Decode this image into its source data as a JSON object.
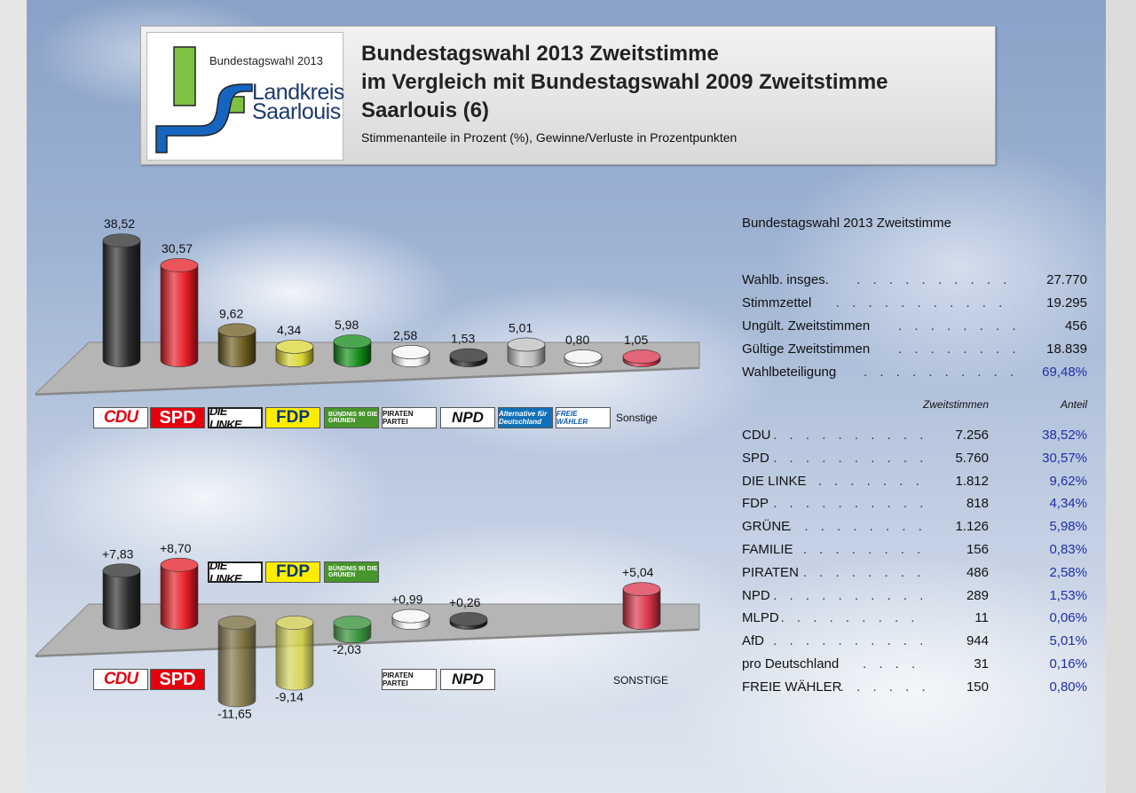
{
  "header": {
    "logo_text": "Bundestagswahl 2013",
    "logo_name_1": "Landkreis",
    "logo_name_2": "Saarlouis",
    "title_1": "Bundestagswahl 2013 Zweitstimme",
    "title_2": "im Vergleich mit Bundestagswahl 2009 Zweitstimme",
    "title_3": "Saarlouis (6)",
    "subtitle": "Stimmenanteile in Prozent (%), Gewinne/Verluste in Prozentpunkten"
  },
  "colors": {
    "CDU": "#2a2a2a",
    "SPD": "#e31b23",
    "LINKE": "#6b5a1e",
    "FDP": "#d8d633",
    "GRUENE": "#0f8a14",
    "PIRATEN": "#f4f4f4",
    "NPD": "#222222",
    "AfD": "#bdbdbd",
    "FW": "#f2f2f2",
    "Sonstige": "#d9324a"
  },
  "chart_data": [
    {
      "type": "bar",
      "categories": [
        "CDU",
        "SPD",
        "DIE LINKE",
        "FDP",
        "GRÜNE",
        "PIRATEN",
        "NPD",
        "AfD",
        "FREIE WÄHLER",
        "Sonstige"
      ],
      "values": [
        38.52,
        30.57,
        9.62,
        4.34,
        5.98,
        2.58,
        1.53,
        5.01,
        0.8,
        1.05
      ],
      "labels": [
        "38,52",
        "30,57",
        "9,62",
        "4,34",
        "5,98",
        "2,58",
        "1,53",
        "5,01",
        "0,80",
        "1,05"
      ],
      "legend_logos": [
        {
          "key": "CDU",
          "text": "CDU"
        },
        {
          "key": "SPD",
          "text": "SPD"
        },
        {
          "key": "LINKE",
          "text": "DIE LINKE."
        },
        {
          "key": "FDP",
          "text": "FDP"
        },
        {
          "key": "GRUENE",
          "text": "BÜNDNIS 90 DIE GRÜNEN"
        },
        {
          "key": "PIRATEN",
          "text": "PIRATEN PARTEI"
        },
        {
          "key": "NPD",
          "text": "NPD"
        },
        {
          "key": "AfD",
          "text": "Alternative für Deutschland"
        },
        {
          "key": "FW",
          "text": "FREIE WÄHLER"
        }
      ],
      "other_label": "Sonstige"
    },
    {
      "type": "bar",
      "categories": [
        "CDU",
        "SPD",
        "DIE LINKE",
        "FDP",
        "GRÜNE",
        "PIRATEN",
        "NPD",
        "SONSTIGE"
      ],
      "values": [
        7.83,
        8.7,
        -11.65,
        -9.14,
        -2.03,
        0.99,
        0.26,
        5.04
      ],
      "labels": [
        "+7,83",
        "+8,70",
        "-11,65",
        "-9,14",
        "-2,03",
        "+0,99",
        "+0,26",
        "+5,04"
      ],
      "legend_logos": [
        {
          "key": "CDU",
          "text": "CDU"
        },
        {
          "key": "SPD",
          "text": "SPD"
        },
        {
          "key": "LINKE",
          "text": "DIE LINKE."
        },
        {
          "key": "FDP",
          "text": "FDP"
        },
        {
          "key": "GRUENE",
          "text": "BÜNDNIS 90 DIE GRÜNEN"
        },
        {
          "key": "PIRATEN",
          "text": "PIRATEN PARTEI"
        },
        {
          "key": "NPD",
          "text": "NPD"
        }
      ],
      "other_label": "SONSTIGE"
    },
    {
      "type": "table",
      "title": "Bundestagswahl 2013 Zweitstimme",
      "summary": [
        {
          "label": "Wahlb. insges.",
          "value": "27.770"
        },
        {
          "label": "Stimmzettel",
          "value": "19.295"
        },
        {
          "label": "Ungült. Zweitstimmen",
          "value": "456"
        },
        {
          "label": "Gültige Zweitstimmen",
          "value": "18.839"
        },
        {
          "label": "Wahlbeteiligung",
          "value": "69,48%"
        }
      ],
      "col_votes": "Zweitstimmen",
      "col_share": "Anteil",
      "rows": [
        {
          "party": "CDU",
          "votes": "7.256",
          "share": "38,52%"
        },
        {
          "party": "SPD",
          "votes": "5.760",
          "share": "30,57%"
        },
        {
          "party": "DIE LINKE",
          "votes": "1.812",
          "share": "9,62%"
        },
        {
          "party": "FDP",
          "votes": "818",
          "share": "4,34%"
        },
        {
          "party": "GRÜNE",
          "votes": "1.126",
          "share": "5,98%"
        },
        {
          "party": "FAMILIE",
          "votes": "156",
          "share": "0,83%"
        },
        {
          "party": "PIRATEN",
          "votes": "486",
          "share": "2,58%"
        },
        {
          "party": "NPD",
          "votes": "289",
          "share": "1,53%"
        },
        {
          "party": "MLPD",
          "votes": "11",
          "share": "0,06%"
        },
        {
          "party": "AfD",
          "votes": "944",
          "share": "5,01%"
        },
        {
          "party": "pro Deutschland",
          "votes": "31",
          "share": "0,16%"
        },
        {
          "party": "FREIE WÄHLER",
          "votes": "150",
          "share": "0,80%"
        }
      ]
    }
  ]
}
